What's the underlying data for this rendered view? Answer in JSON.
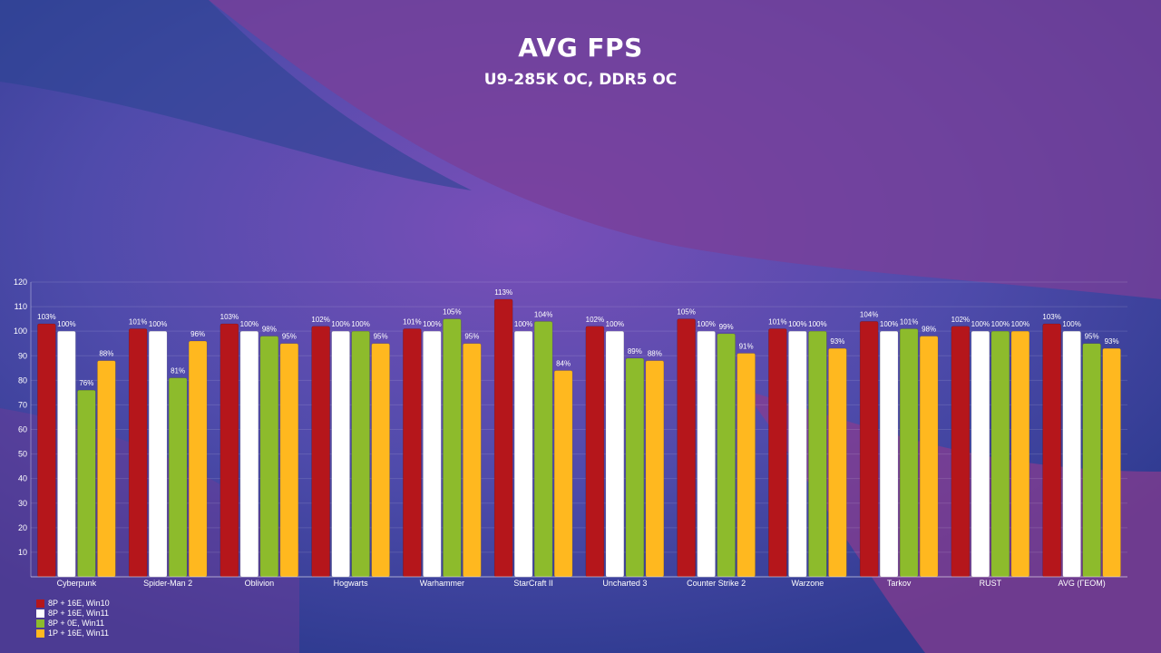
{
  "title": "AVG FPS",
  "subtitle": "U9-285K OC, DDR5 OC",
  "chart_data": {
    "type": "bar",
    "title": "AVG FPS",
    "subtitle": "U9-285K OC, DDR5 OC",
    "xlabel": "",
    "ylabel": "",
    "ylim": [
      0,
      120
    ],
    "yticks": [
      10,
      20,
      30,
      40,
      50,
      60,
      70,
      80,
      90,
      100,
      110,
      120
    ],
    "grid": true,
    "legend_position": "bottom-left",
    "categories": [
      "Cyberpunk",
      "Spider-Man 2",
      "Oblivion",
      "Hogwarts",
      "Warhammer",
      "StarCraft II",
      "Uncharted 3",
      "Counter Strike 2",
      "Warzone",
      "Tarkov",
      "RUST",
      "AVG (ГЕОМ)"
    ],
    "series": [
      {
        "name": "8P + 16E, Win10",
        "color": "#b5161b",
        "values": [
          103,
          101,
          103,
          102,
          101,
          113,
          102,
          105,
          101,
          104,
          102,
          103
        ],
        "labels": [
          "103%",
          "101%",
          "103%",
          "102%",
          "101%",
          "113%",
          "102%",
          "105%",
          "101%",
          "104%",
          "102%",
          "103%"
        ]
      },
      {
        "name": "8P + 16E, Win11",
        "color": "#ffffff",
        "values": [
          100,
          100,
          100,
          100,
          100,
          100,
          100,
          100,
          100,
          100,
          100,
          100
        ],
        "labels": [
          "100%",
          "100%",
          "100%",
          "100%",
          "100%",
          "100%",
          "100%",
          "100%",
          "100%",
          "100%",
          "100%",
          "100%"
        ]
      },
      {
        "name": "8P + 0E, Win11",
        "color": "#8dbb2c",
        "values": [
          76,
          81,
          98,
          100,
          105,
          104,
          89,
          99,
          100,
          101,
          100,
          95
        ],
        "labels": [
          "76%",
          "81%",
          "98%",
          "100%",
          "105%",
          "104%",
          "89%",
          "99%",
          "100%",
          "101%",
          "100%",
          "95%"
        ]
      },
      {
        "name": "1P + 16E, Win11",
        "color": "#ffb81f",
        "values": [
          88,
          96,
          95,
          95,
          95,
          84,
          88,
          91,
          93,
          98,
          100,
          93
        ],
        "labels": [
          "88%",
          "96%",
          "95%",
          "95%",
          "95%",
          "84%",
          "88%",
          "91%",
          "93%",
          "98%",
          "100%",
          "93%"
        ]
      }
    ]
  }
}
